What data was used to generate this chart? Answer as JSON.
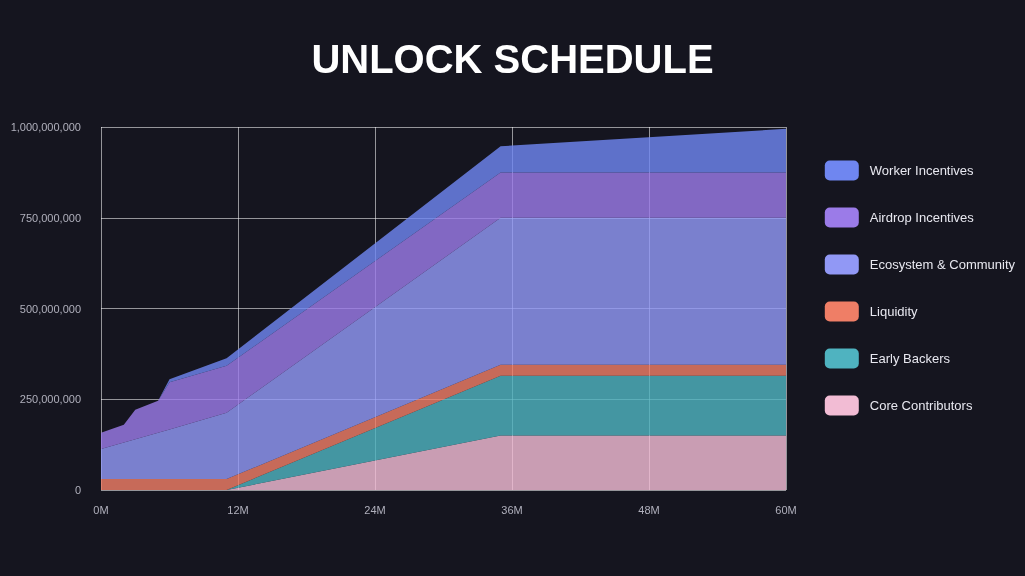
{
  "chart_data": {
    "type": "area",
    "title": "UNLOCK SCHEDULE",
    "stacked": true,
    "grid": true,
    "legend": "right",
    "x": [
      0,
      2,
      3,
      5,
      6,
      11,
      35,
      60
    ],
    "xlim": [
      0,
      60
    ],
    "xticks": [
      {
        "value": 0,
        "label": "0M"
      },
      {
        "value": 12,
        "label": "12M"
      },
      {
        "value": 24,
        "label": "24M"
      },
      {
        "value": 36,
        "label": "36M"
      },
      {
        "value": 48,
        "label": "48M"
      },
      {
        "value": 60,
        "label": "60M"
      }
    ],
    "ylim": [
      0,
      1000000000
    ],
    "yticks": [
      {
        "value": 0,
        "label": "0"
      },
      {
        "value": 250000000,
        "label": "250,000,000"
      },
      {
        "value": 500000000,
        "label": "500,000,000"
      },
      {
        "value": 750000000,
        "label": "750,000,000"
      },
      {
        "value": 1000000000,
        "label": "1,000,000,000"
      }
    ],
    "series": [
      {
        "name": "Core Contributors",
        "color": "#f2bcd4",
        "values": [
          0,
          0,
          0,
          0,
          0,
          0,
          150000000,
          150000000
        ]
      },
      {
        "name": "Early Backers",
        "color": "#4fb3c0",
        "values": [
          0,
          0,
          0,
          0,
          0,
          0,
          165000000,
          165000000
        ]
      },
      {
        "name": "Liquidity",
        "color": "#ef7e66",
        "values": [
          30000000,
          30000000,
          30000000,
          30000000,
          30000000,
          30000000,
          30000000,
          30000000
        ]
      },
      {
        "name": "Ecosystem & Community",
        "color": "#9198f5",
        "values": [
          83000000,
          101000000,
          110000000,
          128000000,
          137000000,
          183000000,
          405000000,
          405000000
        ]
      },
      {
        "name": "Airdrop Incentives",
        "color": "#9b7be8",
        "values": [
          45000000,
          49000000,
          81000000,
          88000000,
          130000000,
          129000000,
          125000000,
          125000000
        ]
      },
      {
        "name": "Worker Incentives",
        "color": "#6f86f0",
        "values": [
          0,
          0,
          0,
          0,
          8000000,
          21000000,
          72000000,
          120000000
        ]
      }
    ]
  }
}
